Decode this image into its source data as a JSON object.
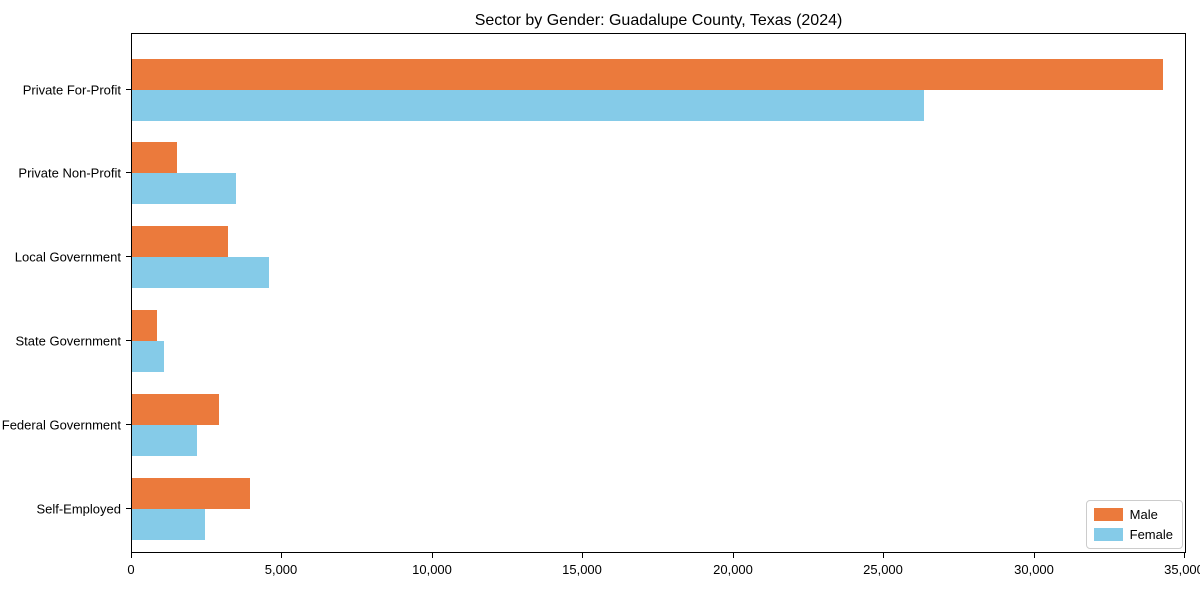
{
  "chart_data": {
    "type": "bar",
    "orientation": "horizontal",
    "title": "Sector by Gender: Guadalupe County, Texas (2024)",
    "categories": [
      "Private For-Profit",
      "Private Non-Profit",
      "Local Government",
      "State Government",
      "Federal Government",
      "Self-Employed"
    ],
    "series": [
      {
        "name": "Male",
        "color": "#eb7a3c",
        "values": [
          34260,
          1510,
          3180,
          830,
          2900,
          3920
        ]
      },
      {
        "name": "Female",
        "color": "#85cbe8",
        "values": [
          26330,
          3470,
          4550,
          1060,
          2160,
          2420
        ]
      }
    ],
    "xlim": [
      0,
      35000
    ],
    "x_ticks": [
      0,
      5000,
      10000,
      15000,
      20000,
      25000,
      30000,
      35000
    ],
    "x_tick_labels": [
      "0",
      "5,000",
      "10,000",
      "15,000",
      "20,000",
      "25,000",
      "30,000",
      "35,000"
    ],
    "xlabel": "",
    "ylabel": "",
    "grid": false,
    "legend_position": "lower right",
    "spine_color": "#000000",
    "background_color": "#ffffff"
  }
}
